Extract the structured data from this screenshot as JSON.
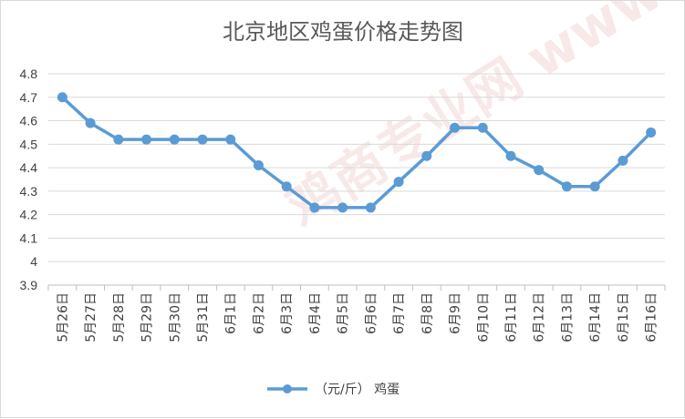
{
  "chart_data": {
    "type": "line",
    "title": "北京地区鸡蛋价格走势图",
    "categories": [
      "5月26日",
      "5月27日",
      "5月28日",
      "5月29日",
      "5月30日",
      "5月31日",
      "6月1日",
      "6月2日",
      "6月3日",
      "6月4日",
      "6月5日",
      "6月6日",
      "6月7日",
      "6月8日",
      "6月9日",
      "6月10日",
      "6月11日",
      "6月12日",
      "6月13日",
      "6月14日",
      "6月15日",
      "6月16日"
    ],
    "series": [
      {
        "name": "（元/斤） 鸡蛋",
        "values": [
          4.7,
          4.59,
          4.52,
          4.52,
          4.52,
          4.52,
          4.52,
          4.41,
          4.32,
          4.23,
          4.23,
          4.23,
          4.34,
          4.45,
          4.57,
          4.57,
          4.45,
          4.39,
          4.32,
          4.32,
          4.43,
          4.55
        ],
        "color": "#5b9bd5"
      }
    ],
    "ylim": [
      3.9,
      4.8
    ],
    "yticks": [
      "3.9",
      "4",
      "4.1",
      "4.2",
      "4.3",
      "4.4",
      "4.5",
      "4.6",
      "4.7",
      "4.8"
    ],
    "grid": true,
    "legend_position": "bottom",
    "watermark": "鸡商专业网 www.jidan.com"
  }
}
